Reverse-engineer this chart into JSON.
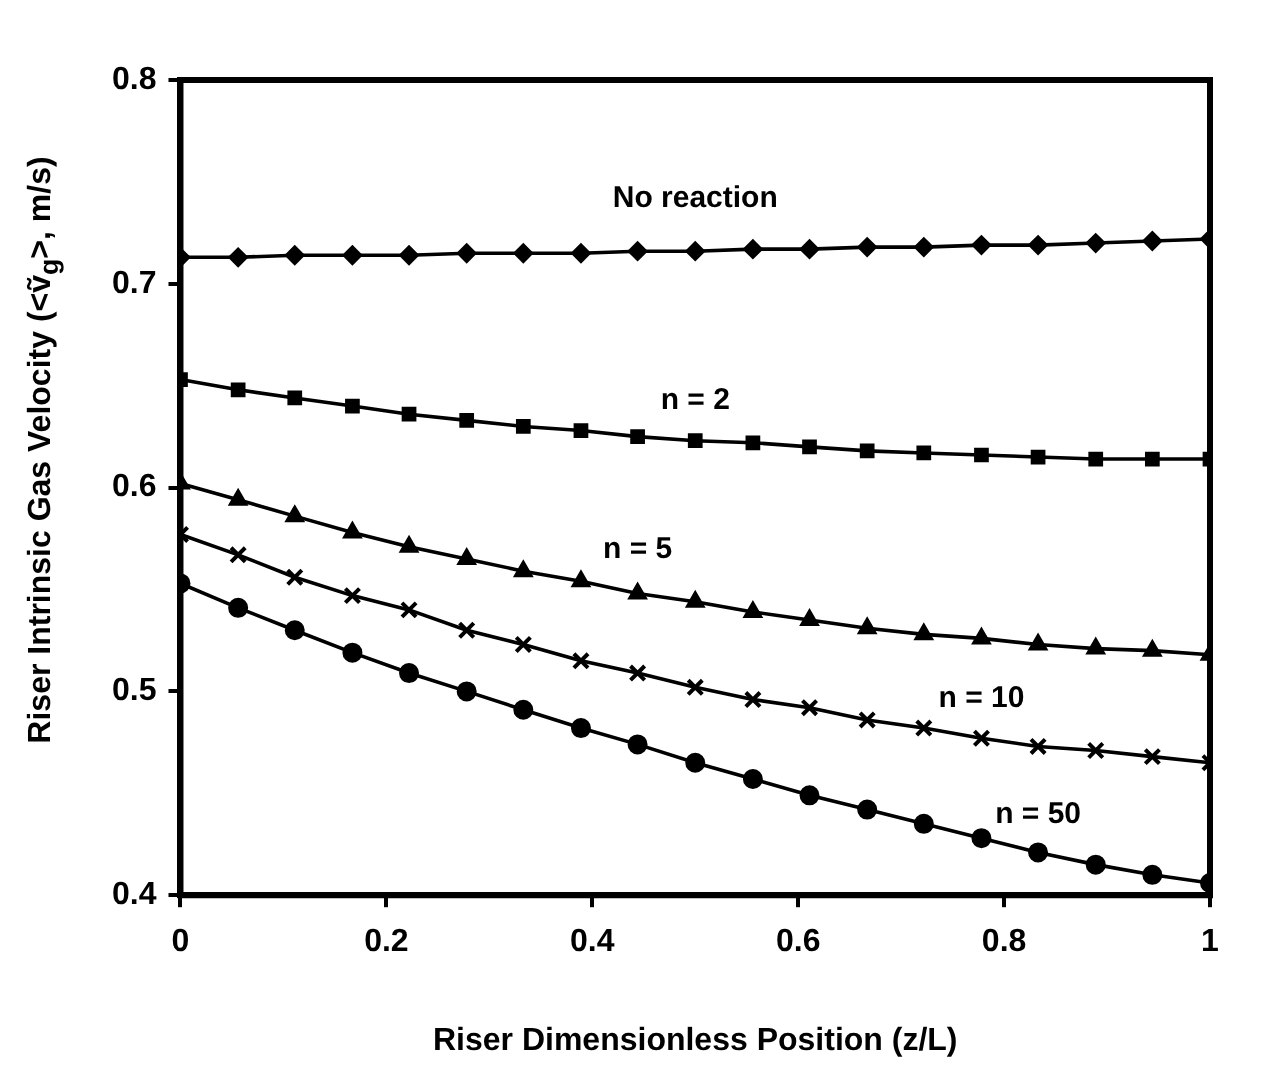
{
  "chart_data": {
    "type": "line",
    "xlabel": "Riser Dimensionless Position (z/L)",
    "ylabel": "Riser Intrinsic Gas Velocity (<ṽ$_{g}$>, m/s)",
    "x": [
      0,
      0.056,
      0.111,
      0.167,
      0.222,
      0.278,
      0.333,
      0.389,
      0.444,
      0.5,
      0.556,
      0.611,
      0.667,
      0.722,
      0.778,
      0.833,
      0.889,
      0.944,
      1
    ],
    "series": [
      {
        "name": "No reaction",
        "color": "#000000",
        "marker": "diamond",
        "values": [
          0.713,
          0.713,
          0.714,
          0.714,
          0.714,
          0.715,
          0.715,
          0.715,
          0.716,
          0.716,
          0.717,
          0.717,
          0.718,
          0.718,
          0.719,
          0.719,
          0.72,
          0.721,
          0.722
        ]
      },
      {
        "name": "n = 2",
        "color": "#000000",
        "marker": "square",
        "values": [
          0.653,
          0.648,
          0.644,
          0.64,
          0.636,
          0.633,
          0.63,
          0.628,
          0.625,
          0.623,
          0.622,
          0.62,
          0.618,
          0.617,
          0.616,
          0.615,
          0.614,
          0.614,
          0.614
        ]
      },
      {
        "name": "n = 5",
        "color": "#000000",
        "marker": "triangle",
        "values": [
          0.602,
          0.594,
          0.586,
          0.578,
          0.571,
          0.565,
          0.559,
          0.554,
          0.548,
          0.544,
          0.539,
          0.535,
          0.531,
          0.528,
          0.526,
          0.523,
          0.521,
          0.52,
          0.518
        ]
      },
      {
        "name": "n = 10",
        "color": "#000000",
        "marker": "cross",
        "values": [
          0.577,
          0.567,
          0.556,
          0.547,
          0.54,
          0.53,
          0.523,
          0.515,
          0.509,
          0.502,
          0.496,
          0.492,
          0.486,
          0.482,
          0.477,
          0.473,
          0.471,
          0.468,
          0.465
        ]
      },
      {
        "name": "n = 50",
        "color": "#000000",
        "marker": "circle",
        "values": [
          0.553,
          0.541,
          0.53,
          0.519,
          0.509,
          0.5,
          0.491,
          0.482,
          0.474,
          0.465,
          0.457,
          0.449,
          0.442,
          0.435,
          0.428,
          0.421,
          0.415,
          0.41,
          0.406
        ]
      }
    ],
    "xlim": [
      0,
      1
    ],
    "xticks": [
      0,
      0.2,
      0.4,
      0.6,
      0.8,
      1
    ],
    "ylim": [
      0.4,
      0.8
    ],
    "yticks": [
      0.4,
      0.5,
      0.6,
      0.7,
      0.8
    ],
    "grid": false,
    "legend": false
  }
}
